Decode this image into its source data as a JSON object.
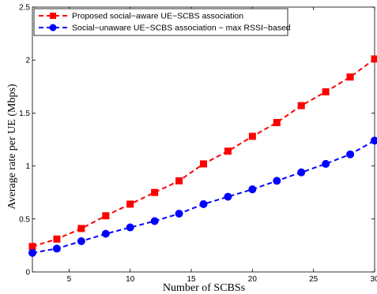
{
  "chart_data": {
    "type": "line",
    "xlabel": "Number of SCBSs",
    "ylabel": "Average rate per UE (Mbps)",
    "xlim": [
      2,
      30
    ],
    "ylim": [
      0,
      2.5
    ],
    "xticks": [
      5,
      10,
      15,
      20,
      25,
      30
    ],
    "yticks": [
      0,
      0.5,
      1,
      1.5,
      2,
      2.5
    ],
    "xtick_labels": [
      "5",
      "10",
      "15",
      "20",
      "25",
      "30"
    ],
    "ytick_labels": [
      "0",
      "0.5",
      "1",
      "1.5",
      "2",
      "2.5"
    ],
    "grid": false,
    "legend_position": "top-left",
    "x": [
      2,
      4,
      6,
      8,
      10,
      12,
      14,
      16,
      18,
      20,
      22,
      24,
      26,
      28,
      30
    ],
    "series": [
      {
        "name": "Proposed social−aware UE−SCBS association",
        "color": "#ff0000",
        "marker": "square",
        "line_style": "dashed",
        "values": [
          0.24,
          0.31,
          0.41,
          0.53,
          0.64,
          0.75,
          0.86,
          1.02,
          1.14,
          1.28,
          1.41,
          1.57,
          1.7,
          1.84,
          2.01
        ]
      },
      {
        "name": "Social−unaware UE−SCBS association − max RSSI−based",
        "color": "#0000ff",
        "marker": "circle",
        "line_style": "dashed",
        "values": [
          0.18,
          0.22,
          0.29,
          0.36,
          0.42,
          0.48,
          0.55,
          0.64,
          0.71,
          0.78,
          0.86,
          0.94,
          1.02,
          1.11,
          1.24
        ]
      }
    ]
  }
}
